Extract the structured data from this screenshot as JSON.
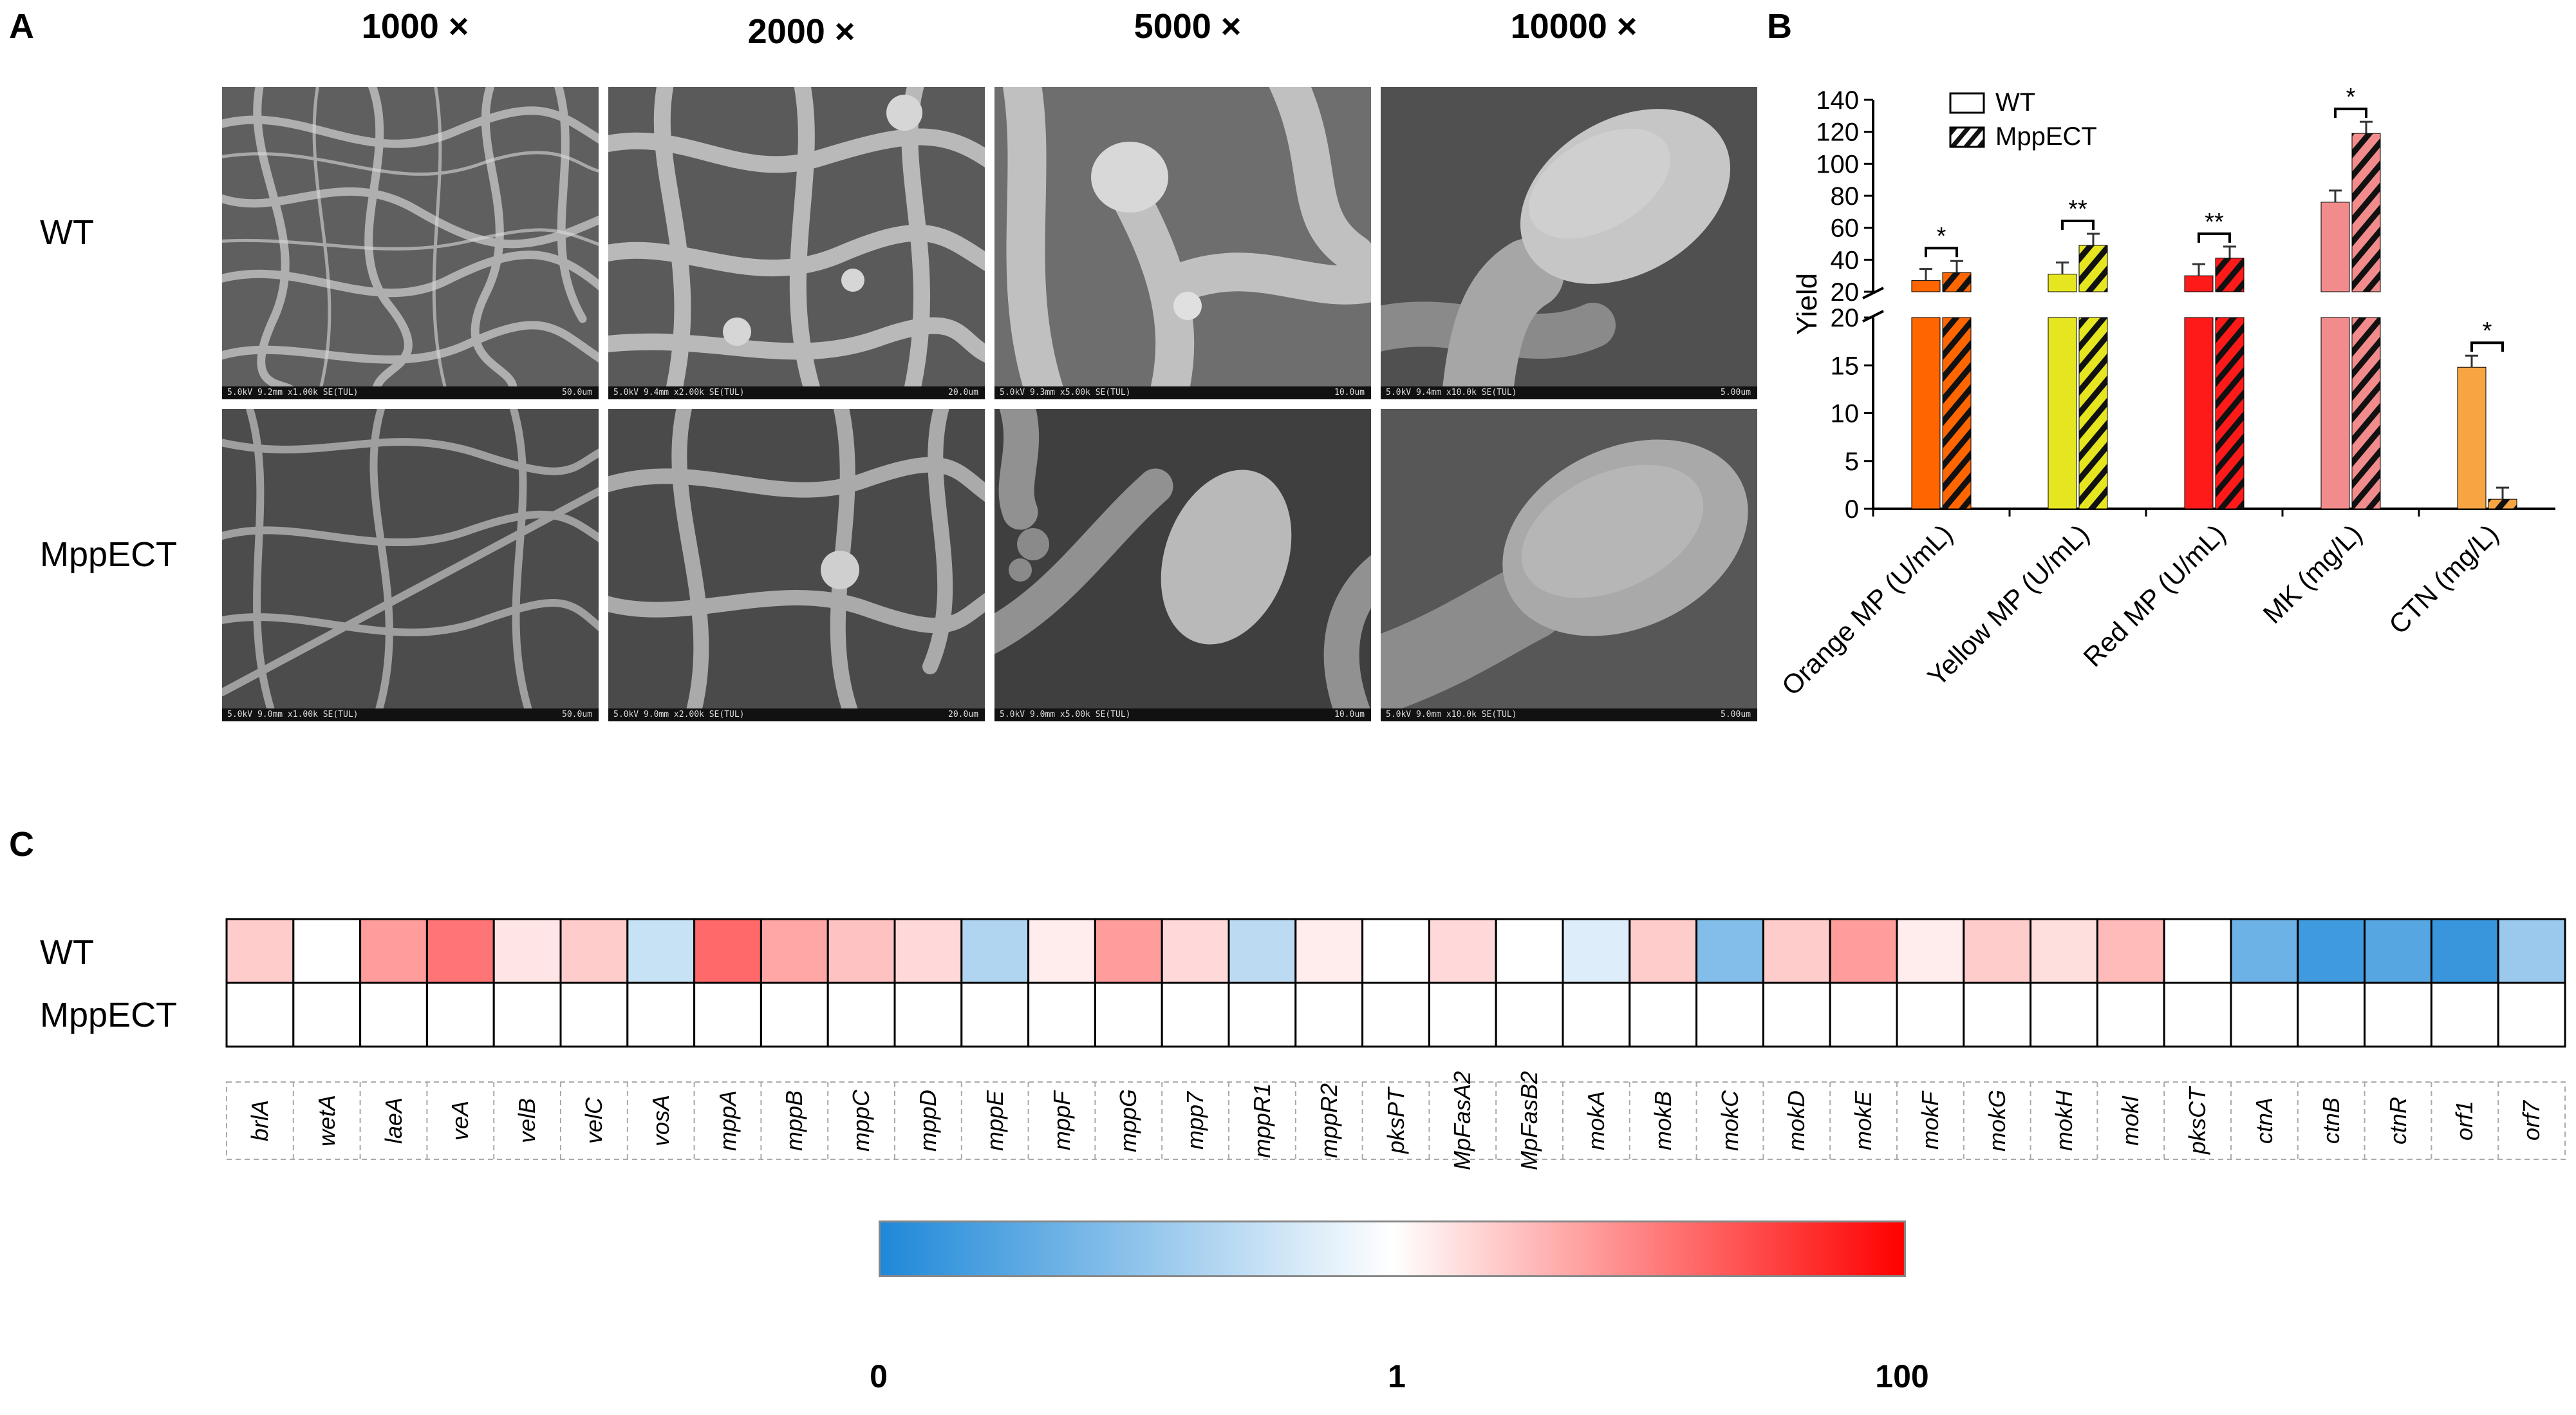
{
  "panel_a": {
    "letter": "A",
    "magnifications": [
      "1000 ×",
      "2000 ×",
      "5000 ×",
      "10000 ×"
    ],
    "rows": [
      "WT",
      "MppECT"
    ],
    "scale_info": [
      [
        "5.0kV 9.2mm x1.00k SE(TUL)",
        "5.0kV 9.4mm x2.00k SE(TUL)",
        "5.0kV 9.3mm x5.00k SE(TUL)",
        "5.0kV 9.4mm x10.0k SE(TUL)"
      ],
      [
        "5.0kV 9.0mm x1.00k SE(TUL)",
        "5.0kV 9.0mm x2.00k SE(TUL)",
        "5.0kV 9.0mm x5.00k SE(TUL)",
        "5.0kV 9.0mm x10.0k SE(TUL)"
      ]
    ],
    "scale_bars": [
      "50.0um",
      "20.0um",
      "10.0um",
      "5.00um"
    ]
  },
  "panel_b": {
    "letter": "B",
    "legend": [
      {
        "label": "WT",
        "pattern": "solid"
      },
      {
        "label": "MppECT",
        "pattern": "hatched"
      }
    ],
    "chart_data": {
      "type": "bar",
      "ylabel": "Yield",
      "y_axis": "broken",
      "upper_segment": {
        "ylim": [
          20,
          140
        ],
        "ticks": [
          20,
          40,
          60,
          80,
          100,
          120,
          140
        ]
      },
      "lower_segment": {
        "ylim": [
          0,
          20
        ],
        "ticks": [
          0,
          5,
          10,
          15,
          20
        ]
      },
      "categories": [
        "Orange MP (U/mL)",
        "Yellow MP (U/mL)",
        "Red MP (U/mL)",
        "MK (mg/L)",
        "CTN (mg/L)"
      ],
      "series": [
        {
          "name": "WT",
          "values": [
            27,
            31,
            30,
            76,
            14.8
          ]
        },
        {
          "name": "MppECT",
          "values": [
            32,
            49,
            41,
            119,
            1.0
          ]
        }
      ],
      "significance": [
        "*",
        "**",
        "**",
        "*",
        "*"
      ],
      "colors": [
        "#ff6600",
        "#e6e620",
        "#ff1a1a",
        "#f28c8c",
        "#f7a442"
      ]
    }
  },
  "panel_c": {
    "letter": "C",
    "rows": [
      "WT",
      "MppECT"
    ],
    "genes": [
      "brlA",
      "wetA",
      "laeA",
      "veA",
      "velB",
      "velC",
      "vosA",
      "mppA",
      "mppB",
      "mppC",
      "mppD",
      "mppE",
      "mppF",
      "mppG",
      "mpp7",
      "mppR1",
      "mppR2",
      "pksPT",
      "MpFasA2",
      "MpFasB2",
      "mokA",
      "mokB",
      "mokC",
      "mokD",
      "mokE",
      "mokF",
      "mokG",
      "mokH",
      "mokI",
      "pksCT",
      "ctnA",
      "ctnB",
      "ctnR",
      "orf1",
      "orf7"
    ],
    "chart_data": {
      "type": "heatmap",
      "rows": [
        "WT",
        "MppECT"
      ],
      "columns": [
        "brlA",
        "wetA",
        "laeA",
        "veA",
        "velB",
        "velC",
        "vosA",
        "mppA",
        "mppB",
        "mppC",
        "mppD",
        "mppE",
        "mppF",
        "mppG",
        "mpp7",
        "mppR1",
        "mppR2",
        "pksPT",
        "MpFasA2",
        "MpFasB2",
        "mokA",
        "mokB",
        "mokC",
        "mokD",
        "mokE",
        "mokF",
        "mokG",
        "mokH",
        "mokI",
        "pksCT",
        "ctnA",
        "ctnB",
        "ctnR",
        "orf1",
        "orf7"
      ],
      "values": [
        [
          2.5,
          1.0,
          6.0,
          12.0,
          1.6,
          2.5,
          0.75,
          15.0,
          5.0,
          3.0,
          2.0,
          0.65,
          1.4,
          6.0,
          2.0,
          0.7,
          1.4,
          1.0,
          2.0,
          1.0,
          0.85,
          2.5,
          0.45,
          2.5,
          6.0,
          1.4,
          2.5,
          1.8,
          3.5,
          1.0,
          0.35,
          0.15,
          0.25,
          0.12,
          0.55
        ],
        [
          1,
          1,
          1,
          1,
          1,
          1,
          1,
          1,
          1,
          1,
          1,
          1,
          1,
          1,
          1,
          1,
          1,
          1,
          1,
          1,
          1,
          1,
          1,
          1,
          1,
          1,
          1,
          1,
          1,
          1,
          1,
          1,
          1,
          1,
          1
        ]
      ],
      "scale": "log",
      "colorbar": {
        "ticks": [
          "0",
          "1",
          "100"
        ],
        "low_color": "#1e88d8",
        "mid_color": "#ffffff",
        "high_color": "#ff0000"
      }
    }
  }
}
